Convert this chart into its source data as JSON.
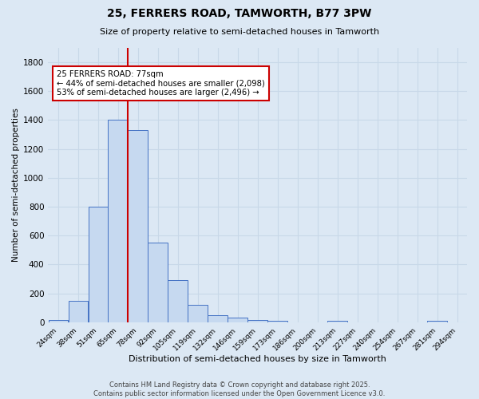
{
  "title1": "25, FERRERS ROAD, TAMWORTH, B77 3PW",
  "title2": "Size of property relative to semi-detached houses in Tamworth",
  "xlabel": "Distribution of semi-detached houses by size in Tamworth",
  "ylabel": "Number of semi-detached properties",
  "categories": [
    "24sqm",
    "38sqm",
    "51sqm",
    "65sqm",
    "78sqm",
    "92sqm",
    "105sqm",
    "119sqm",
    "132sqm",
    "146sqm",
    "159sqm",
    "173sqm",
    "186sqm",
    "200sqm",
    "213sqm",
    "227sqm",
    "240sqm",
    "254sqm",
    "267sqm",
    "281sqm",
    "294sqm"
  ],
  "values": [
    15,
    150,
    800,
    1400,
    1330,
    550,
    290,
    120,
    50,
    30,
    15,
    8,
    0,
    0,
    10,
    0,
    0,
    0,
    0,
    10,
    0
  ],
  "bar_color": "#c6d9f0",
  "bar_edge_color": "#4472c4",
  "vline_color": "#cc0000",
  "annotation_text": "25 FERRERS ROAD: 77sqm\n← 44% of semi-detached houses are smaller (2,098)\n53% of semi-detached houses are larger (2,496) →",
  "annotation_box_color": "#ffffff",
  "annotation_box_edge": "#cc0000",
  "ylim": [
    0,
    1900
  ],
  "yticks": [
    0,
    200,
    400,
    600,
    800,
    1000,
    1200,
    1400,
    1600,
    1800
  ],
  "grid_color": "#c8d8e8",
  "bg_color": "#dce8f4",
  "footer": "Contains HM Land Registry data © Crown copyright and database right 2025.\nContains public sector information licensed under the Open Government Licence v3.0."
}
